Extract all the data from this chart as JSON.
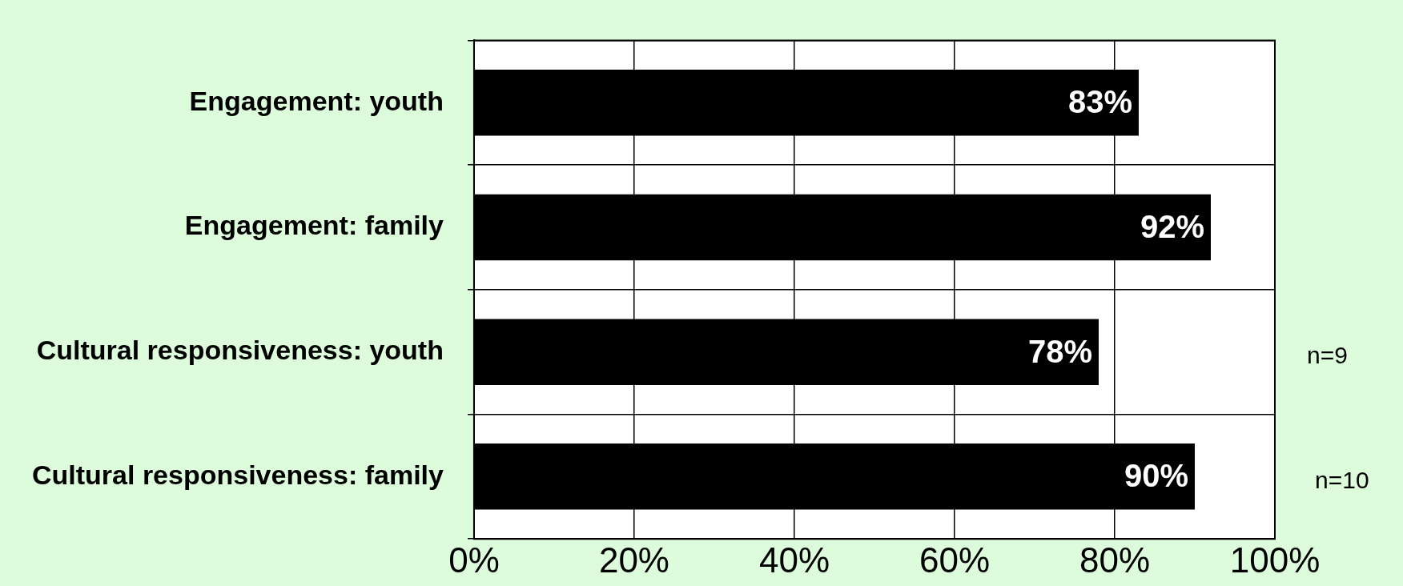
{
  "chart_data": {
    "type": "bar",
    "orientation": "horizontal",
    "categories": [
      "Engagement: youth",
      "Engagement: family",
      "Cultural responsiveness: youth",
      "Cultural responsiveness: family"
    ],
    "values": [
      83,
      92,
      78,
      90
    ],
    "value_labels": [
      "83%",
      "92%",
      "78%",
      "90%"
    ],
    "color": "#000000",
    "xlim": [
      0,
      100
    ],
    "xticks": [
      {
        "value": 0,
        "label": "0%"
      },
      {
        "value": 20,
        "label": "20%"
      },
      {
        "value": 40,
        "label": "40%"
      },
      {
        "value": 60,
        "label": "60%"
      },
      {
        "value": 80,
        "label": "80%"
      },
      {
        "value": 100,
        "label": "100%"
      }
    ],
    "grid": true,
    "annotations": [
      "n=9",
      "n=10"
    ]
  }
}
